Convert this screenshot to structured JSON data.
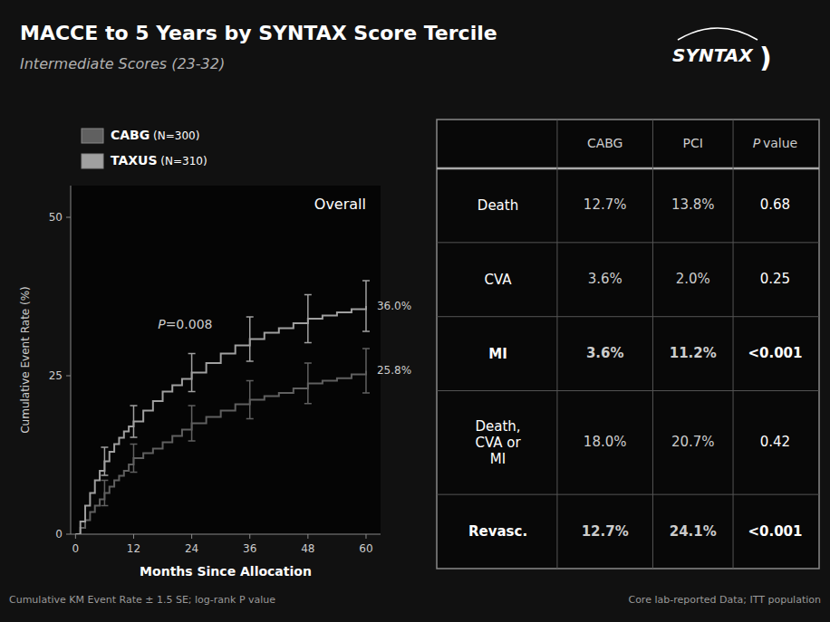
{
  "chart_data": [
    {
      "type": "line",
      "title": "MACCE to 5 Years by SYNTAX Score Tercile",
      "subtitle": "Intermediate Scores (23-32)",
      "logo": [
        "SYNTAX",
        ")"
      ],
      "x_label": "Months Since Allocation",
      "y_label": "Cumulative Event Rate (%)",
      "line_style": "step",
      "grid": false,
      "xlim": [
        -1,
        63
      ],
      "xticks": [
        0,
        12,
        24,
        36,
        48,
        60
      ],
      "ylim": [
        0,
        55
      ],
      "yticks": [
        0,
        25,
        50
      ],
      "x": [
        0,
        1,
        2,
        3,
        4,
        5,
        6,
        7,
        8,
        9,
        10,
        11,
        12,
        14,
        16,
        18,
        20,
        22,
        24,
        27,
        30,
        33,
        36,
        39,
        42,
        45,
        48,
        51,
        54,
        57,
        60
      ],
      "series": [
        {
          "name": "CABG (N=300)",
          "color": "#606060",
          "values": [
            0,
            1.0,
            2.2,
            3.5,
            4.5,
            5.5,
            6.5,
            7.5,
            8.5,
            9.2,
            10.0,
            11.0,
            12.0,
            12.8,
            13.5,
            14.5,
            15.5,
            16.5,
            17.5,
            18.5,
            19.5,
            20.5,
            21.2,
            21.8,
            22.3,
            23.0,
            23.8,
            24.2,
            24.6,
            25.2,
            25.8
          ],
          "error_bars": {
            "x": [
              6,
              12,
              24,
              36,
              48,
              60
            ],
            "values": [
              6.5,
              12.0,
              17.5,
              21.2,
              23.8,
              25.8
            ],
            "errors": [
              2.0,
              2.2,
              2.8,
              3.0,
              3.2,
              3.5
            ]
          },
          "end_label": "25.8%"
        },
        {
          "name": "TAXUS (N=310)",
          "color": "#a0a0a0",
          "values": [
            0,
            2.0,
            4.5,
            6.5,
            8.5,
            10.0,
            11.5,
            13.0,
            14.2,
            15.2,
            16.2,
            17.0,
            17.8,
            19.5,
            21.0,
            22.5,
            23.5,
            24.5,
            25.5,
            27.0,
            28.5,
            29.8,
            30.8,
            31.8,
            32.5,
            33.3,
            34.0,
            34.5,
            35.0,
            35.5,
            36.0
          ],
          "error_bars": {
            "x": [
              6,
              12,
              24,
              36,
              48,
              60
            ],
            "values": [
              11.5,
              17.8,
              25.5,
              30.8,
              34.0,
              36.0
            ],
            "errors": [
              2.2,
              2.5,
              3.0,
              3.5,
              3.8,
              4.0
            ]
          },
          "end_label": "36.0%"
        }
      ],
      "annotations": [
        {
          "text": "P=0.008",
          "x": 17,
          "y": 33
        },
        {
          "text": "Overall",
          "x": 60,
          "y": 53
        }
      ],
      "notes": [
        "Cumulative KM Event Rate ± 1.5 SE; log-rank P value",
        "Core lab-reported Data; ITT population"
      ]
    },
    {
      "type": "table",
      "categories": [
        "Death",
        "CVA",
        "MI",
        "Death,\nCVA or\nMI",
        "Revasc."
      ],
      "series": [
        {
          "name": "CABG",
          "values": [
            12.7,
            3.6,
            3.6,
            18.0,
            12.7
          ],
          "value_labels": [
            "12.7%",
            "3.6%",
            "3.6%",
            "18.0%",
            "12.7%"
          ]
        },
        {
          "name": "PCI",
          "values": [
            13.8,
            2.0,
            11.2,
            20.7,
            24.1
          ],
          "value_labels": [
            "13.8%",
            "2.0%",
            "11.2%",
            "20.7%",
            "24.1%"
          ]
        },
        {
          "name": "P value",
          "values": [
            0.68,
            0.25,
            0.001,
            0.42,
            0.001
          ],
          "value_labels": [
            "0.68",
            "0.25",
            "<0.001",
            "0.42",
            "<0.001"
          ]
        }
      ]
    }
  ]
}
